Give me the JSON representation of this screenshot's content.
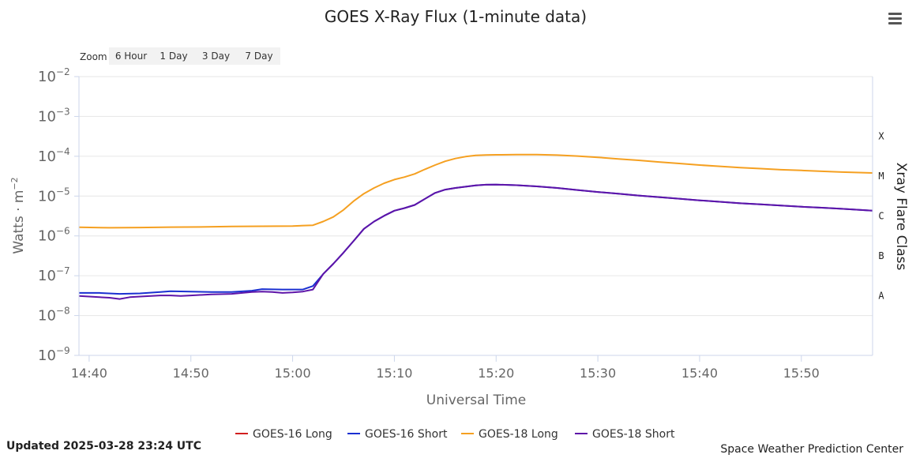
{
  "chart_data": {
    "type": "line",
    "title": "GOES X-Ray Flux (1-minute data)",
    "xlabel": "Universal Time",
    "ylabel": "Watts · m",
    "ylabel_sup": "−2",
    "y2label": "Xray Flare Class",
    "y_scale": "log",
    "ylim": [
      1e-09,
      0.01
    ],
    "y_ticks": [
      {
        "base": "10",
        "exp": "−2",
        "value": 0.01
      },
      {
        "base": "10",
        "exp": "−3",
        "value": 0.001
      },
      {
        "base": "10",
        "exp": "−4",
        "value": 0.0001
      },
      {
        "base": "10",
        "exp": "−5",
        "value": 1e-05
      },
      {
        "base": "10",
        "exp": "−6",
        "value": 1e-06
      },
      {
        "base": "10",
        "exp": "−7",
        "value": 1e-07
      },
      {
        "base": "10",
        "exp": "−8",
        "value": 1e-08
      },
      {
        "base": "10",
        "exp": "−9",
        "value": 1e-09
      }
    ],
    "flare_classes": [
      {
        "label": "X",
        "value": 0.0001
      },
      {
        "label": "M",
        "value": 1e-05
      },
      {
        "label": "C",
        "value": 1e-06
      },
      {
        "label": "B",
        "value": 1e-07
      },
      {
        "label": "A",
        "value": 1e-08
      }
    ],
    "xlim": [
      "14:39",
      "15:57"
    ],
    "x_ticks": [
      "14:40",
      "14:50",
      "15:00",
      "15:10",
      "15:20",
      "15:30",
      "15:40",
      "15:50"
    ],
    "grid": true,
    "legend_position": "bottom-center",
    "series": [
      {
        "name": "GOES-16 Long",
        "color": "#d11f1f",
        "x": [],
        "y": []
      },
      {
        "name": "GOES-16 Short",
        "color": "#1a2fd1",
        "x": [
          "14:39",
          "14:41",
          "14:43",
          "14:45",
          "14:47",
          "14:48",
          "14:50",
          "14:52",
          "14:54",
          "14:56",
          "14:57",
          "14:59",
          "15:00",
          "15:01",
          "15:02",
          "15:03",
          "15:04",
          "15:05",
          "15:06",
          "15:07",
          "15:08",
          "15:09",
          "15:10",
          "15:11",
          "15:12",
          "15:13",
          "15:14",
          "15:15",
          "15:16",
          "15:17",
          "15:18",
          "15:19",
          "15:20",
          "15:22",
          "15:24",
          "15:26",
          "15:28",
          "15:30",
          "15:32",
          "15:34",
          "15:36",
          "15:38",
          "15:40",
          "15:42",
          "15:44",
          "15:46",
          "15:48",
          "15:50",
          "15:52",
          "15:54",
          "15:57"
        ],
        "y": [
          3.7e-08,
          3.7e-08,
          3.5e-08,
          3.6e-08,
          3.9e-08,
          4.1e-08,
          4e-08,
          3.9e-08,
          3.9e-08,
          4.2e-08,
          4.6e-08,
          4.5e-08,
          4.5e-08,
          4.5e-08,
          5.5e-08,
          1.1e-07,
          2e-07,
          3.8e-07,
          7.5e-07,
          1.5e-06,
          2.3e-06,
          3.2e-06,
          4.3e-06,
          5e-06,
          6e-06,
          8.5e-06,
          1.2e-05,
          1.45e-05,
          1.6e-05,
          1.72e-05,
          1.85e-05,
          1.93e-05,
          1.95e-05,
          1.88e-05,
          1.75e-05,
          1.6e-05,
          1.42e-05,
          1.27e-05,
          1.15e-05,
          1.03e-05,
          9.4e-06,
          8.6e-06,
          7.8e-06,
          7.2e-06,
          6.6e-06,
          6.2e-06,
          5.8e-06,
          5.4e-06,
          5.1e-06,
          4.8e-06,
          4.3e-06
        ]
      },
      {
        "name": "GOES-18 Long",
        "color": "#f5a021",
        "x": [
          "14:39",
          "14:42",
          "14:45",
          "14:48",
          "14:51",
          "14:54",
          "14:57",
          "15:00",
          "15:02",
          "15:03",
          "15:04",
          "15:05",
          "15:06",
          "15:07",
          "15:08",
          "15:09",
          "15:10",
          "15:11",
          "15:12",
          "15:13",
          "15:14",
          "15:15",
          "15:16",
          "15:17",
          "15:18",
          "15:19",
          "15:20",
          "15:22",
          "15:24",
          "15:26",
          "15:28",
          "15:30",
          "15:32",
          "15:34",
          "15:36",
          "15:38",
          "15:40",
          "15:42",
          "15:44",
          "15:46",
          "15:48",
          "15:50",
          "15:52",
          "15:54",
          "15:57"
        ],
        "y": [
          1.65e-06,
          1.6e-06,
          1.62e-06,
          1.66e-06,
          1.68e-06,
          1.72e-06,
          1.75e-06,
          1.77e-06,
          1.85e-06,
          2.3e-06,
          3e-06,
          4.5e-06,
          7.5e-06,
          1.15e-05,
          1.6e-05,
          2.1e-05,
          2.6e-05,
          3e-05,
          3.6e-05,
          4.7e-05,
          6e-05,
          7.5e-05,
          8.8e-05,
          9.8e-05,
          0.000105,
          0.000108,
          0.000109,
          0.00011,
          0.00011,
          0.000107,
          0.000101,
          9.4e-05,
          8.6e-05,
          7.9e-05,
          7.2e-05,
          6.6e-05,
          6e-05,
          5.6e-05,
          5.2e-05,
          4.9e-05,
          4.6e-05,
          4.4e-05,
          4.2e-05,
          4e-05,
          3.8e-05
        ]
      },
      {
        "name": "GOES-18 Short",
        "color": "#5e14a8",
        "x": [
          "14:39",
          "14:41",
          "14:42",
          "14:43",
          "14:44",
          "14:45",
          "14:47",
          "14:48",
          "14:49",
          "14:50",
          "14:52",
          "14:54",
          "14:56",
          "14:57",
          "14:58",
          "14:59",
          "15:00",
          "15:01",
          "15:02",
          "15:03",
          "15:04",
          "15:05",
          "15:06",
          "15:07",
          "15:08",
          "15:09",
          "15:10",
          "15:11",
          "15:12",
          "15:13",
          "15:14",
          "15:15",
          "15:16",
          "15:17",
          "15:18",
          "15:19",
          "15:20",
          "15:22",
          "15:24",
          "15:26",
          "15:28",
          "15:30",
          "15:32",
          "15:34",
          "15:36",
          "15:38",
          "15:40",
          "15:42",
          "15:44",
          "15:46",
          "15:48",
          "15:50",
          "15:52",
          "15:54",
          "15:57"
        ],
        "y": [
          3.1e-08,
          2.9e-08,
          2.8e-08,
          2.6e-08,
          2.9e-08,
          3e-08,
          3.2e-08,
          3.2e-08,
          3.1e-08,
          3.2e-08,
          3.4e-08,
          3.5e-08,
          3.9e-08,
          4e-08,
          3.9e-08,
          3.7e-08,
          3.8e-08,
          4e-08,
          4.5e-08,
          1.1e-07,
          2e-07,
          3.8e-07,
          7.5e-07,
          1.5e-06,
          2.3e-06,
          3.2e-06,
          4.3e-06,
          5e-06,
          6e-06,
          8.5e-06,
          1.2e-05,
          1.45e-05,
          1.6e-05,
          1.72e-05,
          1.85e-05,
          1.93e-05,
          1.95e-05,
          1.88e-05,
          1.75e-05,
          1.6e-05,
          1.42e-05,
          1.27e-05,
          1.15e-05,
          1.03e-05,
          9.4e-06,
          8.6e-06,
          7.8e-06,
          7.2e-06,
          6.6e-06,
          6.2e-06,
          5.8e-06,
          5.4e-06,
          5.1e-06,
          4.8e-06,
          4.3e-06
        ]
      }
    ]
  },
  "zoom": {
    "label": "Zoom",
    "buttons": [
      "6 Hour",
      "1 Day",
      "3 Day",
      "7 Day"
    ]
  },
  "footer": {
    "updated": "Updated 2025-03-28 23:24 UTC",
    "credit": "Space Weather Prediction Center"
  },
  "menu_icon": "hamburger-menu-icon"
}
